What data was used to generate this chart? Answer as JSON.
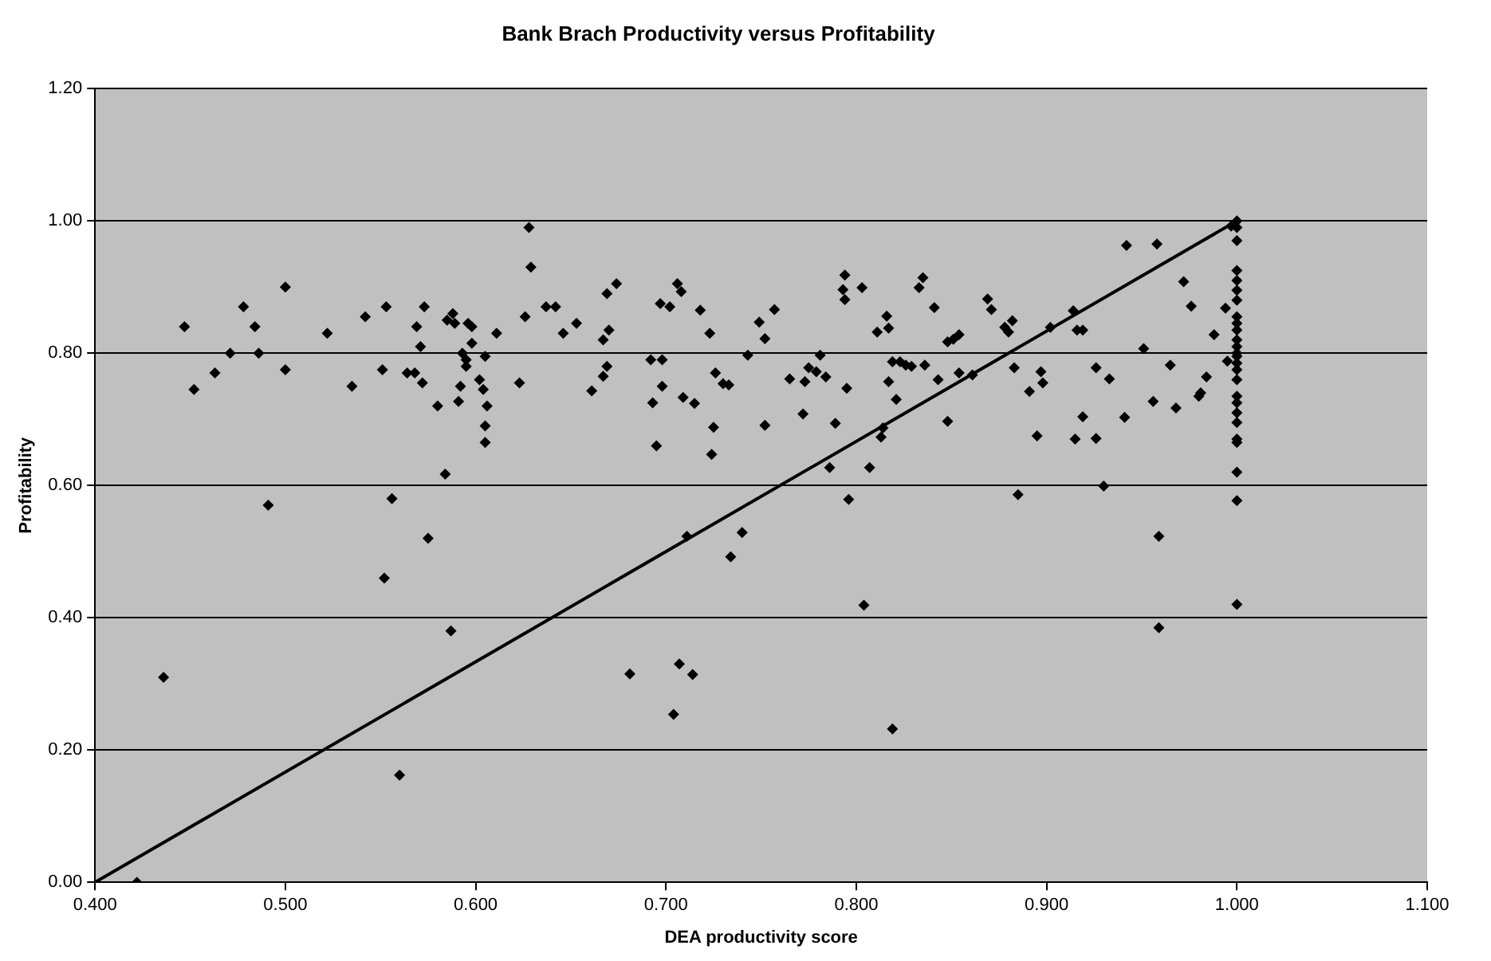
{
  "chart_data": {
    "type": "scatter",
    "title": "Bank Brach Productivity versus Profitability",
    "xlabel": "DEA productivity score",
    "ylabel": "Profitability",
    "xlim": [
      0.4,
      1.1
    ],
    "ylim": [
      0,
      1.2
    ],
    "xticks": [
      {
        "value": 0.4,
        "label": "0.400"
      },
      {
        "value": 0.5,
        "label": "0.500"
      },
      {
        "value": 0.6,
        "label": "0.600"
      },
      {
        "value": 0.7,
        "label": "0.700"
      },
      {
        "value": 0.8,
        "label": "0.800"
      },
      {
        "value": 0.9,
        "label": "0.900"
      },
      {
        "value": 1.0,
        "label": "1.000"
      },
      {
        "value": 1.1,
        "label": "1.100"
      }
    ],
    "yticks": [
      {
        "value": 0,
        "label": "0.00"
      },
      {
        "value": 0.2,
        "label": "0.20"
      },
      {
        "value": 0.4,
        "label": "0.40"
      },
      {
        "value": 0.6,
        "label": "0.60"
      },
      {
        "value": 0.8,
        "label": "0.80"
      },
      {
        "value": 1.0,
        "label": "1.00"
      },
      {
        "value": 1.2,
        "label": "1.20"
      }
    ],
    "grid": "y",
    "marker": "diamond",
    "series": [
      {
        "color": "#000000",
        "x": [
          0.422,
          0.436,
          0.447,
          0.452,
          0.463,
          0.471,
          0.478,
          0.484,
          0.486,
          0.491,
          0.5,
          0.5,
          0.522,
          0.535,
          0.542,
          0.551,
          0.552,
          0.553,
          0.556,
          0.56,
          0.564,
          0.568,
          0.569,
          0.571,
          0.572,
          0.573,
          0.575,
          0.58,
          0.584,
          0.585,
          0.587,
          0.588,
          0.589,
          0.591,
          0.592,
          0.593,
          0.595,
          0.595,
          0.596,
          0.598,
          0.598,
          0.602,
          0.604,
          0.605,
          0.605,
          0.606,
          0.605,
          0.611,
          0.623,
          0.626,
          0.628,
          0.629,
          0.637,
          0.642,
          0.646,
          0.653,
          0.661,
          0.667,
          0.667,
          0.669,
          0.67,
          0.669,
          0.674,
          0.681,
          0.692,
          0.693,
          0.695,
          0.697,
          0.698,
          0.698,
          0.702,
          0.704,
          0.706,
          0.707,
          0.708,
          0.709,
          0.711,
          0.715,
          0.714,
          0.718,
          0.723,
          0.724,
          0.725,
          0.726,
          0.73,
          0.733,
          0.734,
          0.74,
          0.743,
          0.749,
          0.752,
          0.752,
          0.757,
          0.765,
          0.772,
          0.773,
          0.775,
          0.779,
          0.781,
          0.784,
          0.786,
          0.789,
          0.793,
          0.794,
          0.794,
          0.795,
          0.796,
          0.803,
          0.804,
          0.807,
          0.811,
          0.813,
          0.814,
          0.816,
          0.817,
          0.817,
          0.819,
          0.819,
          0.821,
          0.823,
          0.826,
          0.829,
          0.833,
          0.835,
          0.836,
          0.841,
          0.843,
          0.848,
          0.848,
          0.851,
          0.854,
          0.854,
          0.861,
          0.869,
          0.871,
          0.878,
          0.88,
          0.882,
          0.883,
          0.885,
          0.891,
          0.895,
          0.897,
          0.898,
          0.902,
          0.914,
          0.915,
          0.916,
          0.919,
          0.919,
          0.926,
          0.926,
          0.93,
          0.933,
          0.941,
          0.942,
          0.951,
          0.956,
          0.958,
          0.959,
          0.959,
          0.965,
          0.968,
          0.972,
          0.976,
          0.98,
          0.981,
          0.984,
          0.988,
          0.994,
          0.995,
          0.997,
          1.0,
          1.0,
          1.0,
          1.0,
          1.0,
          1.0,
          1.0,
          1.0,
          1.0,
          1.0,
          1.0,
          1.0,
          1.0,
          1.0,
          1.0,
          1.0,
          1.0,
          1.0,
          1.0,
          1.0,
          1.0,
          1.0,
          1.0,
          1.0,
          1.0,
          1.0
        ],
        "values": [
          0.0,
          0.31,
          0.84,
          0.745,
          0.77,
          0.8,
          0.87,
          0.84,
          0.8,
          0.57,
          0.775,
          0.9,
          0.83,
          0.75,
          0.855,
          0.775,
          0.46,
          0.87,
          0.58,
          0.162,
          0.77,
          0.77,
          0.84,
          0.81,
          0.755,
          0.87,
          0.52,
          0.72,
          0.617,
          0.85,
          0.38,
          0.86,
          0.845,
          0.727,
          0.75,
          0.8,
          0.79,
          0.78,
          0.845,
          0.84,
          0.815,
          0.76,
          0.745,
          0.795,
          0.69,
          0.72,
          0.665,
          0.83,
          0.755,
          0.855,
          0.99,
          0.93,
          0.87,
          0.87,
          0.83,
          0.845,
          0.743,
          0.82,
          0.765,
          0.89,
          0.835,
          0.78,
          0.905,
          0.315,
          0.79,
          0.725,
          0.66,
          0.875,
          0.79,
          0.75,
          0.87,
          0.254,
          0.905,
          0.33,
          0.893,
          0.733,
          0.523,
          0.724,
          0.314,
          0.865,
          0.83,
          0.647,
          0.688,
          0.77,
          0.754,
          0.752,
          0.492,
          0.529,
          0.797,
          0.847,
          0.691,
          0.822,
          0.866,
          0.761,
          0.708,
          0.757,
          0.778,
          0.772,
          0.797,
          0.764,
          0.627,
          0.694,
          0.896,
          0.881,
          0.918,
          0.747,
          0.579,
          0.899,
          0.419,
          0.627,
          0.832,
          0.673,
          0.687,
          0.856,
          0.757,
          0.838,
          0.787,
          0.232,
          0.73,
          0.787,
          0.782,
          0.78,
          0.899,
          0.914,
          0.782,
          0.869,
          0.76,
          0.697,
          0.817,
          0.821,
          0.828,
          0.77,
          0.767,
          0.882,
          0.866,
          0.839,
          0.832,
          0.849,
          0.778,
          0.586,
          0.742,
          0.675,
          0.772,
          0.755,
          0.839,
          0.864,
          0.67,
          0.835,
          0.704,
          0.835,
          0.778,
          0.671,
          0.599,
          0.761,
          0.703,
          0.963,
          0.807,
          0.727,
          0.965,
          0.523,
          0.385,
          0.782,
          0.717,
          0.908,
          0.871,
          0.735,
          0.74,
          0.764,
          0.828,
          0.868,
          0.788,
          0.992,
          1.0,
          0.99,
          0.97,
          0.925,
          0.91,
          0.895,
          0.88,
          0.855,
          0.845,
          0.835,
          0.82,
          0.81,
          0.8,
          0.795,
          0.785,
          0.775,
          0.76,
          0.735,
          0.725,
          0.71,
          0.695,
          0.67,
          0.665,
          0.62,
          0.577,
          0.42
        ]
      },
      {
        "type": "line",
        "color": "#000000",
        "marker": "none",
        "x": [
          0.4,
          1.0
        ],
        "values": [
          0,
          1
        ]
      }
    ]
  }
}
